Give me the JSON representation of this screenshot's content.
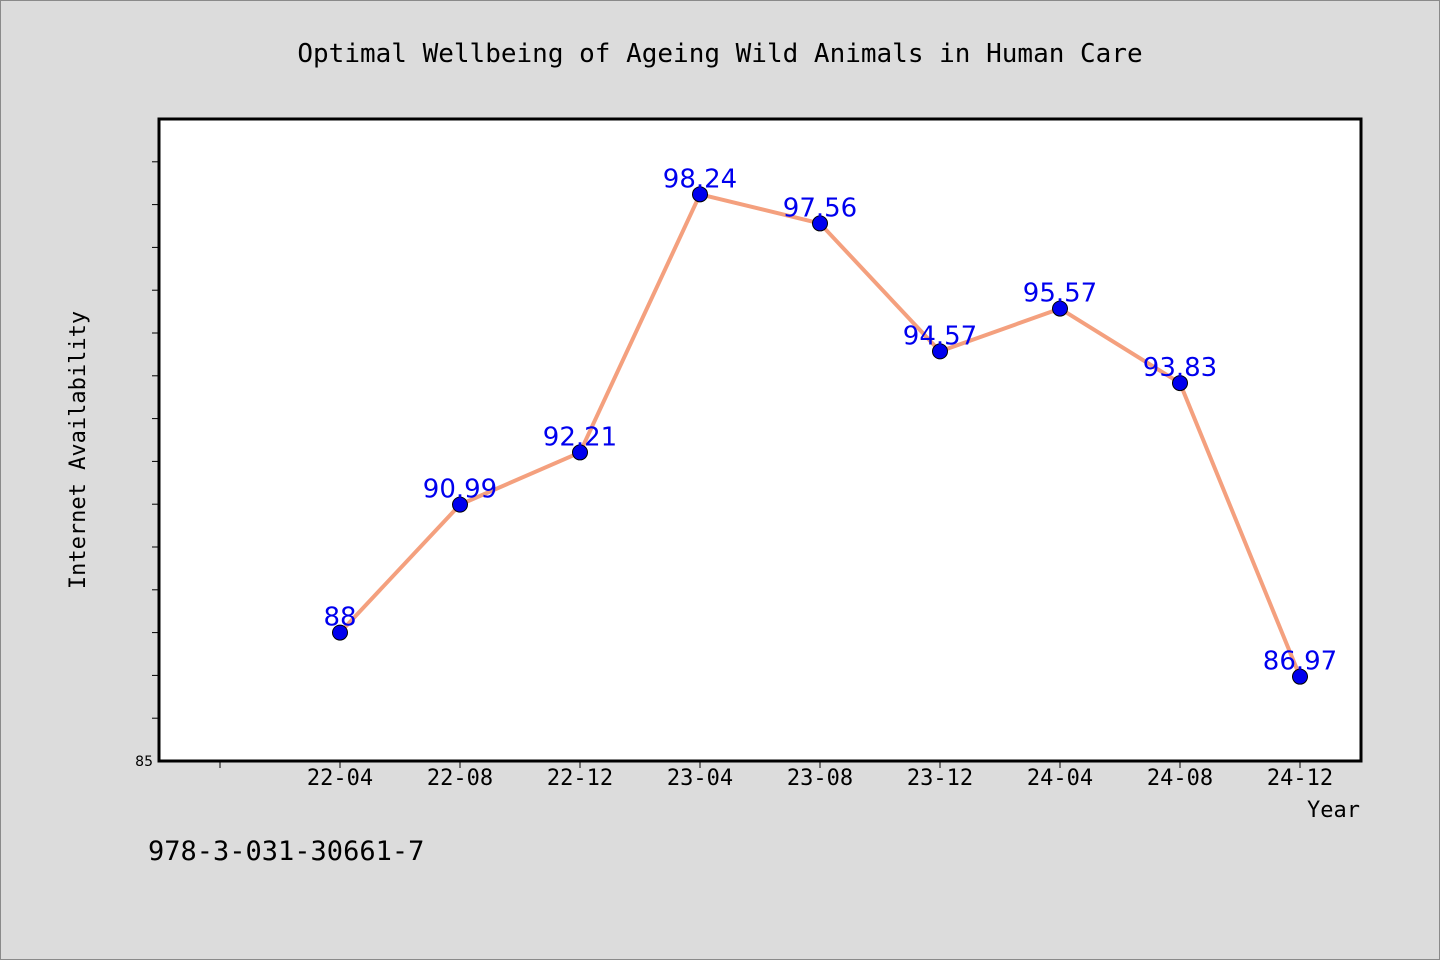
{
  "chart_data": {
    "type": "line",
    "title": "Optimal Wellbeing of Ageing Wild Animals in Human Care",
    "xlabel": "Year",
    "ylabel": "Internet Availability",
    "categories": [
      "22-04",
      "22-08",
      "22-12",
      "23-04",
      "23-08",
      "23-12",
      "24-04",
      "24-08",
      "24-12"
    ],
    "series": [
      {
        "values": [
          88.0,
          90.99,
          92.21,
          98.24,
          97.56,
          94.57,
          95.57,
          93.83,
          86.97
        ],
        "data_labels": [
          "88",
          "90.99",
          "92.21",
          "98.24",
          "97.56",
          "94.57",
          "95.57",
          "93.83",
          "86.97"
        ]
      }
    ],
    "ylim": [
      85,
      100
    ],
    "y_tick_labels_shown": [
      "85"
    ],
    "grid": false,
    "colors": {
      "line": "#f4a07e",
      "marker": "#0000ee",
      "data_label": "#0000ee",
      "plot_background": "#ffffff",
      "figure_background": "#dcdcdc"
    }
  },
  "footnote": "978-3-031-30661-7"
}
